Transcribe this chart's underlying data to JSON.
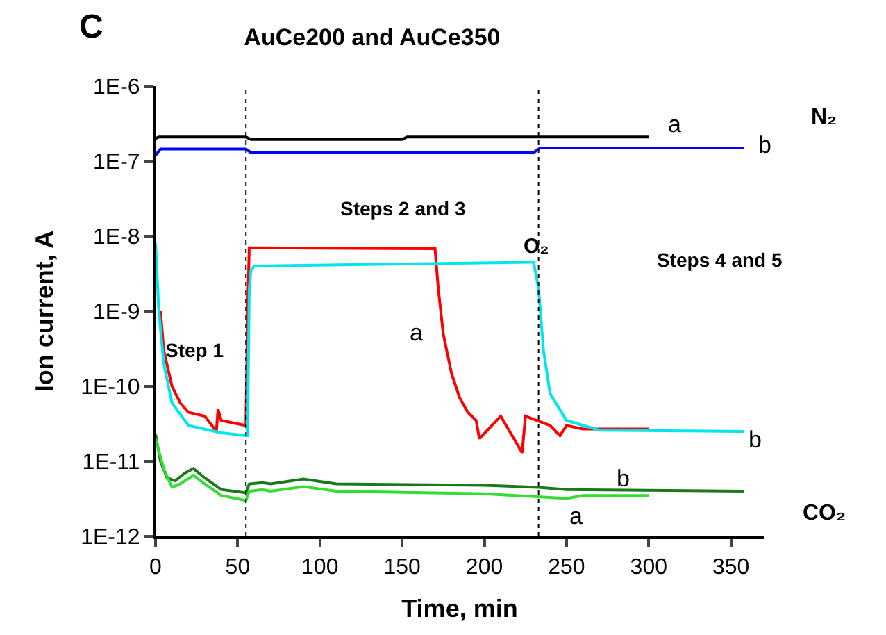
{
  "chart_data": {
    "type": "line",
    "title": "AuCe200 and AuCe350",
    "xlabel": "Time, min",
    "ylabel": "Ion current, A",
    "log": "y",
    "marker": "none",
    "line_style": "solid",
    "xlim": [
      0,
      370
    ],
    "xticks": [
      0,
      50,
      100,
      150,
      200,
      250,
      300,
      350
    ],
    "ylim": [
      1e-12,
      1e-06
    ],
    "yticks": [
      {
        "value": 1e-12,
        "label": "1E-12"
      },
      {
        "value": 1e-11,
        "label": "1E-11"
      },
      {
        "value": 1e-10,
        "label": "1E-10"
      },
      {
        "value": 1e-09,
        "label": "1E-9"
      },
      {
        "value": 1e-08,
        "label": "1E-8"
      },
      {
        "value": 1e-07,
        "label": "1E-7"
      },
      {
        "value": 1e-06,
        "label": "1E-6"
      }
    ],
    "series": [
      {
        "color": "#000000",
        "x": [
          0,
          2,
          55,
          58,
          150,
          153,
          300
        ],
        "values": [
          2e-07,
          2.1e-07,
          2.1e-07,
          1.95e-07,
          1.95e-07,
          2.1e-07,
          2.1e-07
        ]
      },
      {
        "color": "#0000ff",
        "x": [
          0,
          3,
          55,
          58,
          230,
          234,
          358
        ],
        "values": [
          1.2e-07,
          1.45e-07,
          1.45e-07,
          1.3e-07,
          1.3e-07,
          1.5e-07,
          1.5e-07
        ]
      },
      {
        "color": "#ff0000",
        "x": [
          3,
          5,
          10,
          15,
          20,
          30,
          37,
          38,
          40,
          55,
          56,
          57,
          60,
          170,
          172,
          175,
          180,
          185,
          190,
          195,
          197,
          210,
          223,
          225,
          240,
          246,
          250,
          260,
          300
        ],
        "values": [
          1e-09,
          3e-10,
          1e-10,
          6e-11,
          4.5e-11,
          4e-11,
          2.5e-11,
          5e-11,
          3.5e-11,
          3e-11,
          1e-09,
          7e-09,
          7e-09,
          6.8e-09,
          2e-09,
          5e-10,
          1.5e-10,
          7e-11,
          4.5e-11,
          3.5e-11,
          2e-11,
          4e-11,
          1.3e-11,
          4e-11,
          3e-11,
          2.2e-11,
          3e-11,
          2.7e-11,
          2.7e-11
        ]
      },
      {
        "color": "#00e5ee",
        "x": [
          0,
          2,
          5,
          10,
          20,
          40,
          55,
          56,
          57,
          58,
          60,
          230,
          233,
          236,
          240,
          250,
          270,
          358
        ],
        "values": [
          8e-09,
          1e-09,
          2e-10,
          6e-11,
          3e-11,
          2.4e-11,
          2.2e-11,
          2.2e-11,
          2e-09,
          3.5e-09,
          4e-09,
          4.5e-09,
          2e-09,
          3e-10,
          8e-11,
          3.5e-11,
          2.6e-11,
          2.5e-11
        ]
      },
      {
        "color": "#1a7a1a",
        "x": [
          0,
          3,
          7,
          12,
          18,
          23,
          30,
          40,
          55,
          57,
          65,
          70,
          90,
          110,
          200,
          233,
          250,
          358
        ],
        "values": [
          2.3e-11,
          1e-11,
          6e-12,
          5.5e-12,
          7e-12,
          8e-12,
          6e-12,
          4.2e-12,
          3.8e-12,
          5e-12,
          5.2e-12,
          5e-12,
          5.8e-12,
          5e-12,
          4.8e-12,
          4.5e-12,
          4.2e-12,
          4e-12
        ]
      },
      {
        "color": "#33dd33",
        "x": [
          0,
          5,
          10,
          15,
          23,
          30,
          40,
          55,
          57,
          65,
          70,
          90,
          110,
          200,
          250,
          260,
          300
        ],
        "values": [
          2e-11,
          8e-12,
          4.5e-12,
          5e-12,
          6.5e-12,
          5e-12,
          3.5e-12,
          3e-12,
          4e-12,
          4.2e-12,
          4e-12,
          4.6e-12,
          4e-12,
          3.7e-12,
          3.2e-12,
          3.5e-12,
          3.5e-12
        ]
      }
    ],
    "ref_lines": [
      {
        "axis": "x",
        "value": 55,
        "color": "#000000",
        "line_style": "dotted"
      },
      {
        "axis": "x",
        "value": 233,
        "color": "#000000",
        "line_style": "dotted"
      }
    ],
    "annotations": [
      "C",
      "N₂",
      "CO₂",
      "Step 1",
      "Steps 2 and 3",
      "O₂",
      "Steps 4 and 5",
      "a",
      "b",
      "a",
      "b",
      "b",
      "a"
    ]
  }
}
